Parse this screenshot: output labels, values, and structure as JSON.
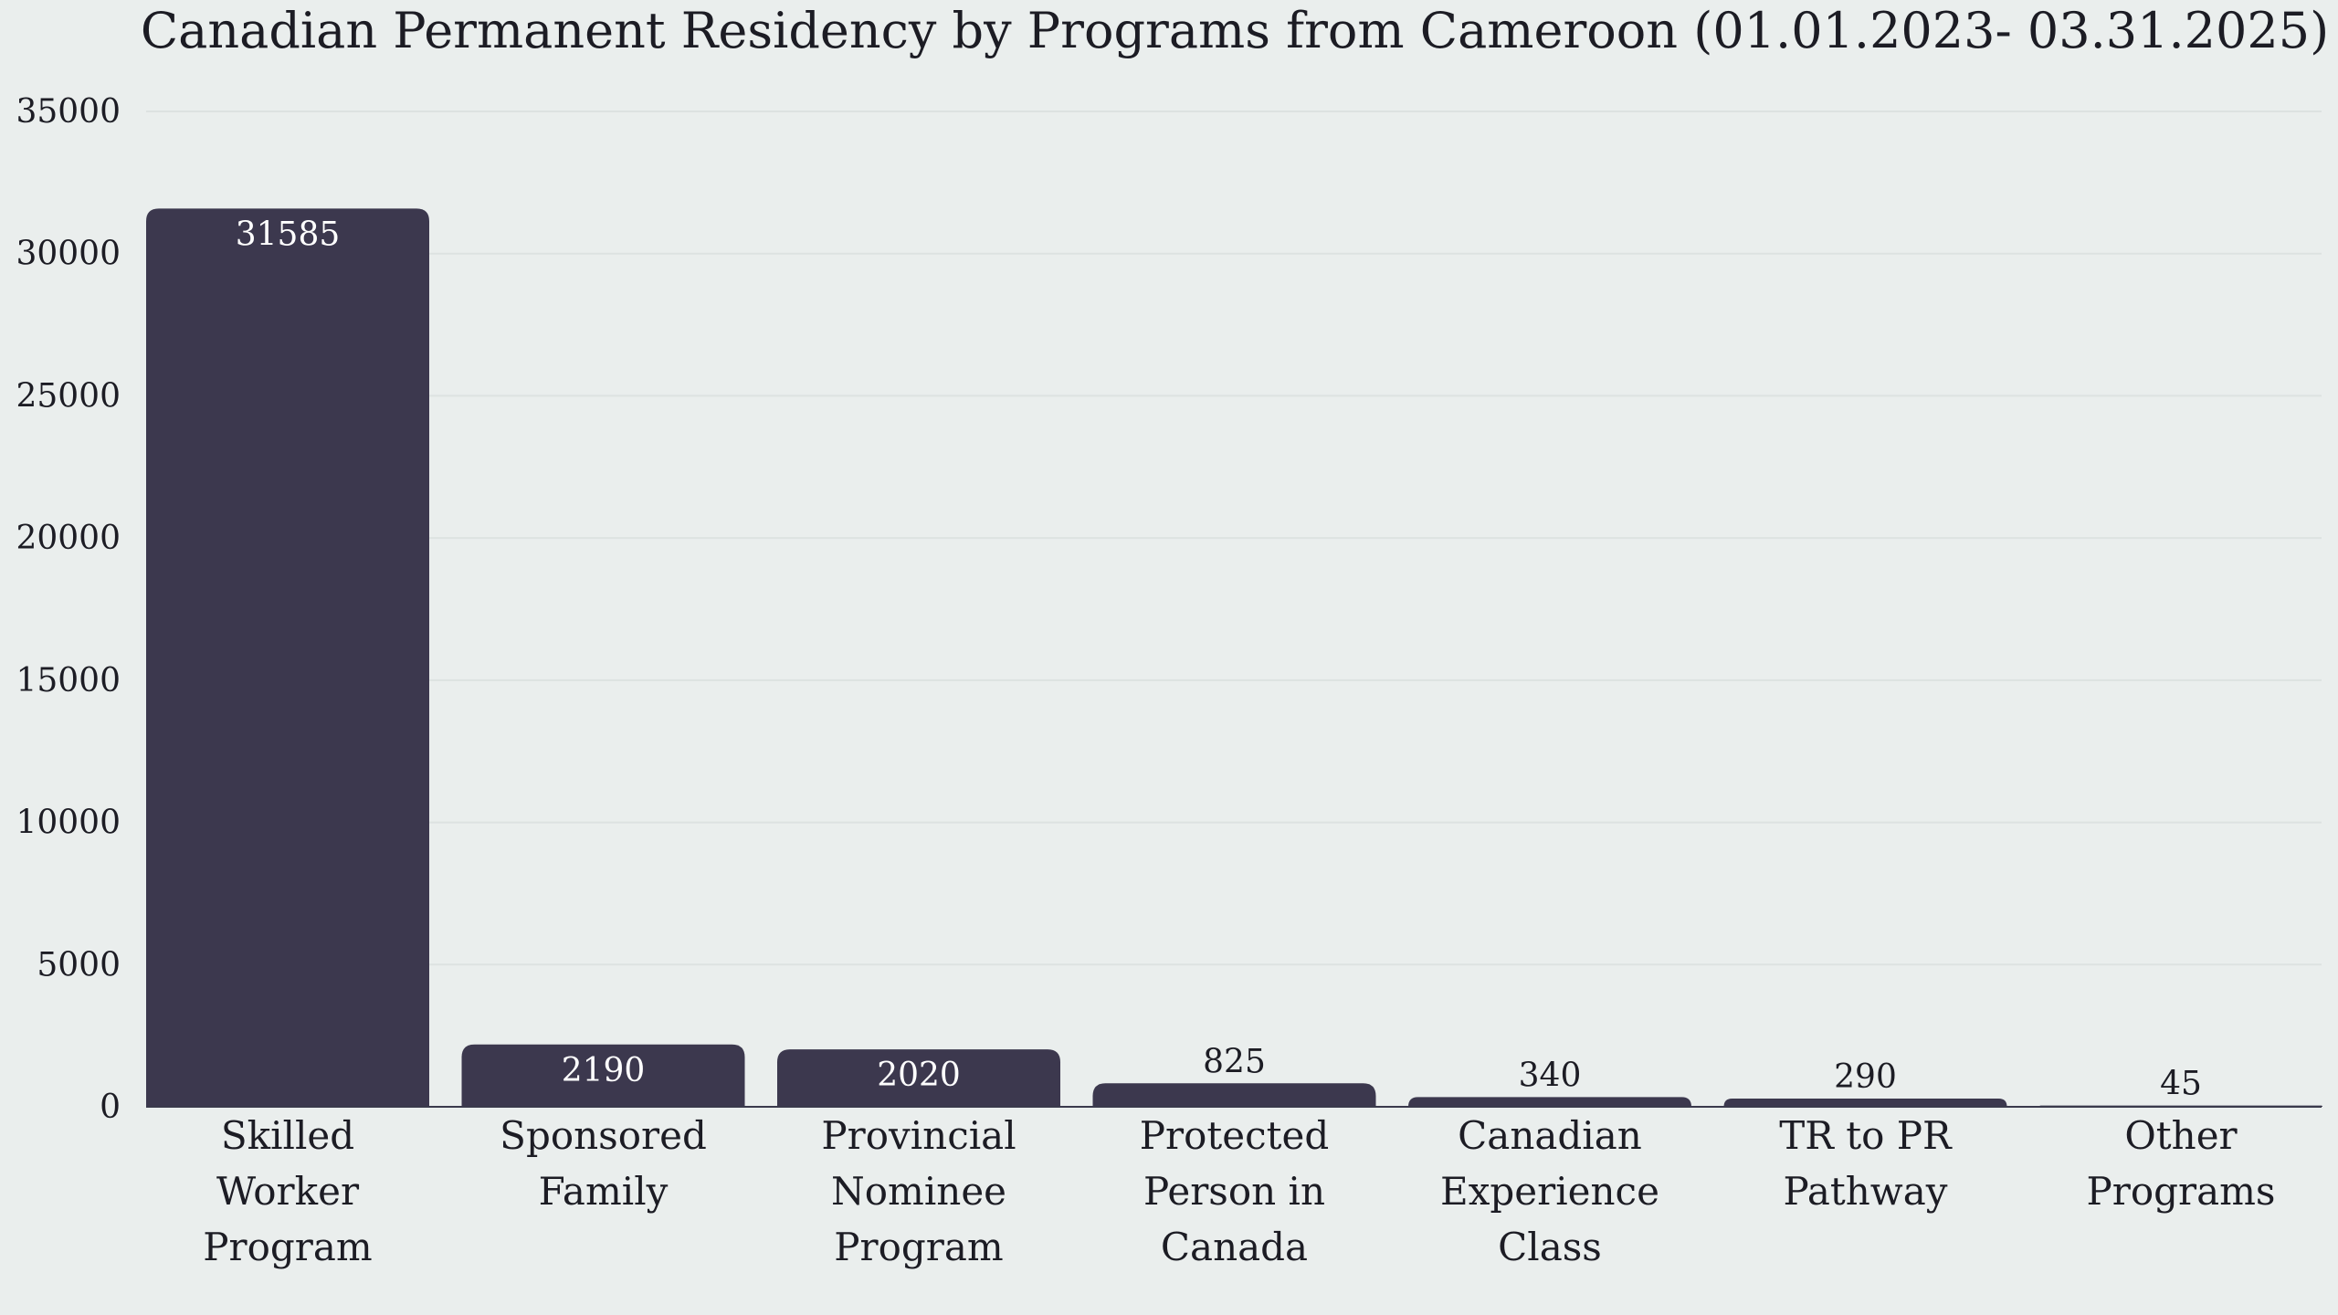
{
  "chart_data": {
    "type": "bar",
    "title": "Canadian Permanent Residency by Programs from Cameroon (01.01.2023- 03.31.2025)",
    "categories": [
      [
        "Skilled",
        "Worker",
        "Program"
      ],
      [
        "Sponsored",
        "Family"
      ],
      [
        "Provincial",
        "Nominee",
        "Program"
      ],
      [
        "Protected",
        "Person in",
        "Canada"
      ],
      [
        "Canadian",
        "Experience",
        "Class"
      ],
      [
        "TR to PR",
        "Pathway"
      ],
      [
        "Other",
        "Programs"
      ]
    ],
    "values": [
      31585,
      2190,
      2020,
      825,
      340,
      290,
      45
    ],
    "value_labels": [
      "31585",
      "2190",
      "2020",
      "825",
      "340",
      "290",
      "45"
    ],
    "yticks": [
      0,
      5000,
      10000,
      15000,
      20000,
      25000,
      30000,
      35000
    ],
    "ytick_labels": [
      "0",
      "5000",
      "10000",
      "15000",
      "20000",
      "25000",
      "30000",
      "35000"
    ],
    "ylim": [
      0,
      35000
    ],
    "xlabel": "",
    "ylabel": "",
    "grid": true,
    "bar_color": "#3c384e",
    "label_inside_color": "#ffffff",
    "label_outside_color": "#1c1c24"
  }
}
